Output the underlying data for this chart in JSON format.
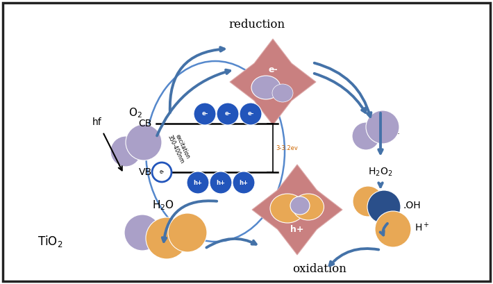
{
  "bg_color": "#ffffff",
  "border_color": "#222222",
  "arrow_color": "#4472a8",
  "electron_color": "#2255bb",
  "hole_color": "#e8a855",
  "purple_color": "#aaa0c8",
  "star_color": "#c98080",
  "dark_blue": "#2a4f8a",
  "text_reduction": "reduction",
  "text_oxidation": "oxidation",
  "text_O2": "O$_2$",
  "text_H2O": "H$_2$O",
  "text_TiO2": "TiO$_2$",
  "text_hf": "hf",
  "text_CB": "CB",
  "text_VB": "VB",
  "text_H2O2": "H$_2$O$_2$",
  "text_OH": ".OH",
  "text_Hplus": "H$^+$",
  "text_eminus": "e-",
  "text_hplus_ion": "h+",
  "text_excitation": "excitation\n350-400nm",
  "text_bandgap": "3-3.2ev"
}
